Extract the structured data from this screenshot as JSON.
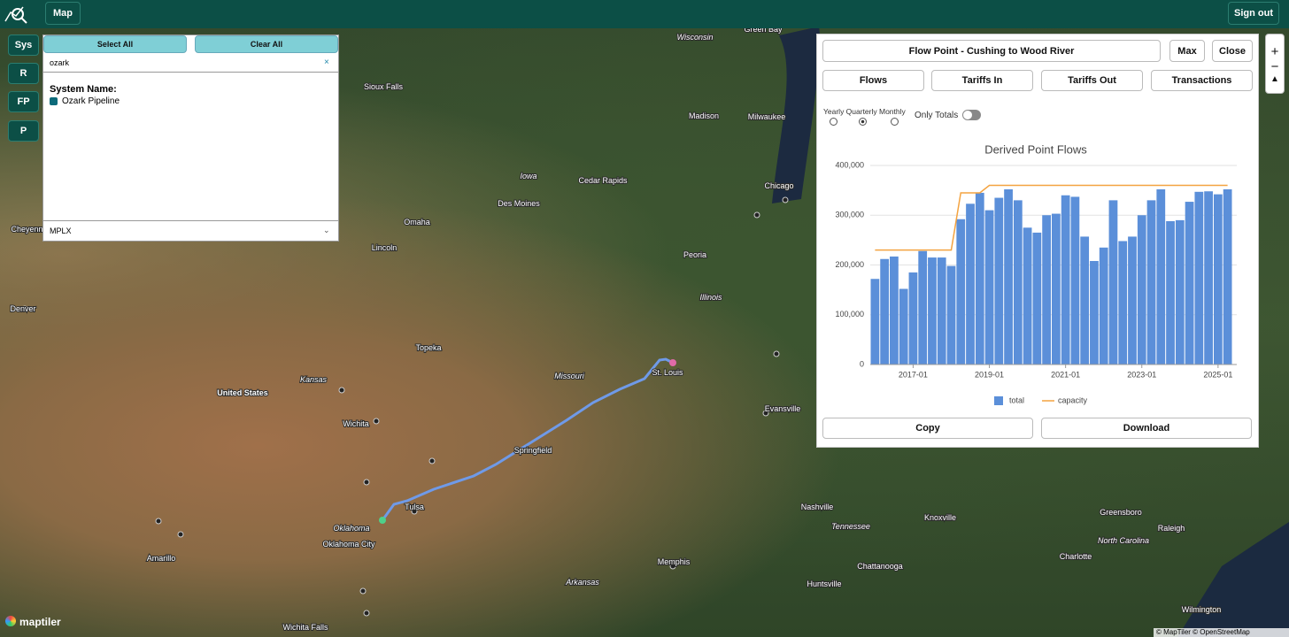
{
  "header": {
    "map_button": "Map",
    "sign_out": "Sign out"
  },
  "sidebar": {
    "buttons": [
      "Sys",
      "R",
      "FP",
      "P"
    ]
  },
  "filter": {
    "select_all": "Select All",
    "clear_all": "Clear All",
    "search": "ozark",
    "clear_icon": "×",
    "heading": "System Name:",
    "items": [
      "Ozark Pipeline"
    ],
    "dropdown": "MPLX",
    "dropdown_icon": "⌄"
  },
  "panel": {
    "title": "Flow Point - Cushing to Wood River",
    "max": "Max",
    "close": "Close",
    "tabs": [
      "Flows",
      "Tariffs In",
      "Tariffs Out",
      "Transactions"
    ],
    "periods": "Yearly Quarterly Monthly",
    "only_totals": "Only Totals",
    "copy": "Copy",
    "download": "Download"
  },
  "map": {
    "labels": [
      "Green Bay",
      "Wisconsin",
      "Sioux Falls",
      "Madison",
      "Milwaukee",
      "Iowa",
      "Cedar Rapids",
      "Des Moines",
      "Chicago",
      "Omaha",
      "Cheyenne",
      "Lincoln",
      "Peoria",
      "Illinois",
      "Denver",
      "Topeka",
      "St. Louis",
      "Missouri",
      "Kansas",
      "United States",
      "Evansville",
      "Wichita",
      "Springfield",
      "Tulsa",
      "Nashville",
      "Knoxville",
      "Greensboro",
      "Raleigh",
      "Oklahoma",
      "Oklahoma City",
      "Tennessee",
      "North Carolina",
      "Charlotte",
      "Amarillo",
      "Memphis",
      "Chattanooga",
      "Huntsville",
      "Arkansas",
      "Wilmington",
      "Wichita Falls"
    ],
    "zoom_in": "+",
    "zoom_out": "−",
    "attribution": "© MapTiler © OpenStreetMap contributors",
    "logo": "maptiler"
  },
  "chart_data": {
    "type": "bar",
    "title": "Derived Point Flows",
    "categories": [
      null,
      null,
      null,
      null,
      "2017-01",
      null,
      null,
      null,
      null,
      null,
      null,
      null,
      "2019-01",
      null,
      null,
      null,
      null,
      null,
      null,
      null,
      "2021-01",
      null,
      null,
      null,
      null,
      null,
      null,
      null,
      "2023-01",
      null,
      null,
      null,
      null,
      null,
      null,
      null,
      "2025-01",
      null
    ],
    "series": [
      {
        "name": "total",
        "color": "#5b8fd9",
        "values": [
          172000,
          212000,
          217000,
          152000,
          185000,
          228000,
          215000,
          215000,
          198000,
          292000,
          323000,
          345000,
          310000,
          335000,
          352000,
          330000,
          275000,
          265000,
          300000,
          303000,
          340000,
          337000,
          257000,
          208000,
          235000,
          330000,
          248000,
          257000,
          300000,
          330000,
          352000,
          288000,
          290000,
          327000,
          347000,
          348000,
          342000,
          352000
        ]
      },
      {
        "name": "capacity",
        "color": "#f4a340",
        "type": "line",
        "values": [
          230000,
          230000,
          230000,
          230000,
          230000,
          230000,
          230000,
          230000,
          230000,
          345000,
          345000,
          345000,
          360000,
          360000,
          360000,
          360000,
          360000,
          360000,
          360000,
          360000,
          360000,
          360000,
          360000,
          360000,
          360000,
          360000,
          360000,
          360000,
          360000,
          360000,
          360000,
          360000,
          360000,
          360000,
          360000,
          360000,
          360000,
          360000
        ]
      }
    ],
    "ylim": [
      0,
      400000
    ],
    "yticks": [
      0,
      {
        "value": 100000,
        "label": "100,000"
      },
      {
        "value": 200000,
        "label": "200,000"
      },
      {
        "value": 300000,
        "label": "300,000"
      },
      {
        "value": 400000,
        "label": "400,000"
      }
    ],
    "grid": true,
    "legend": "bottom"
  }
}
